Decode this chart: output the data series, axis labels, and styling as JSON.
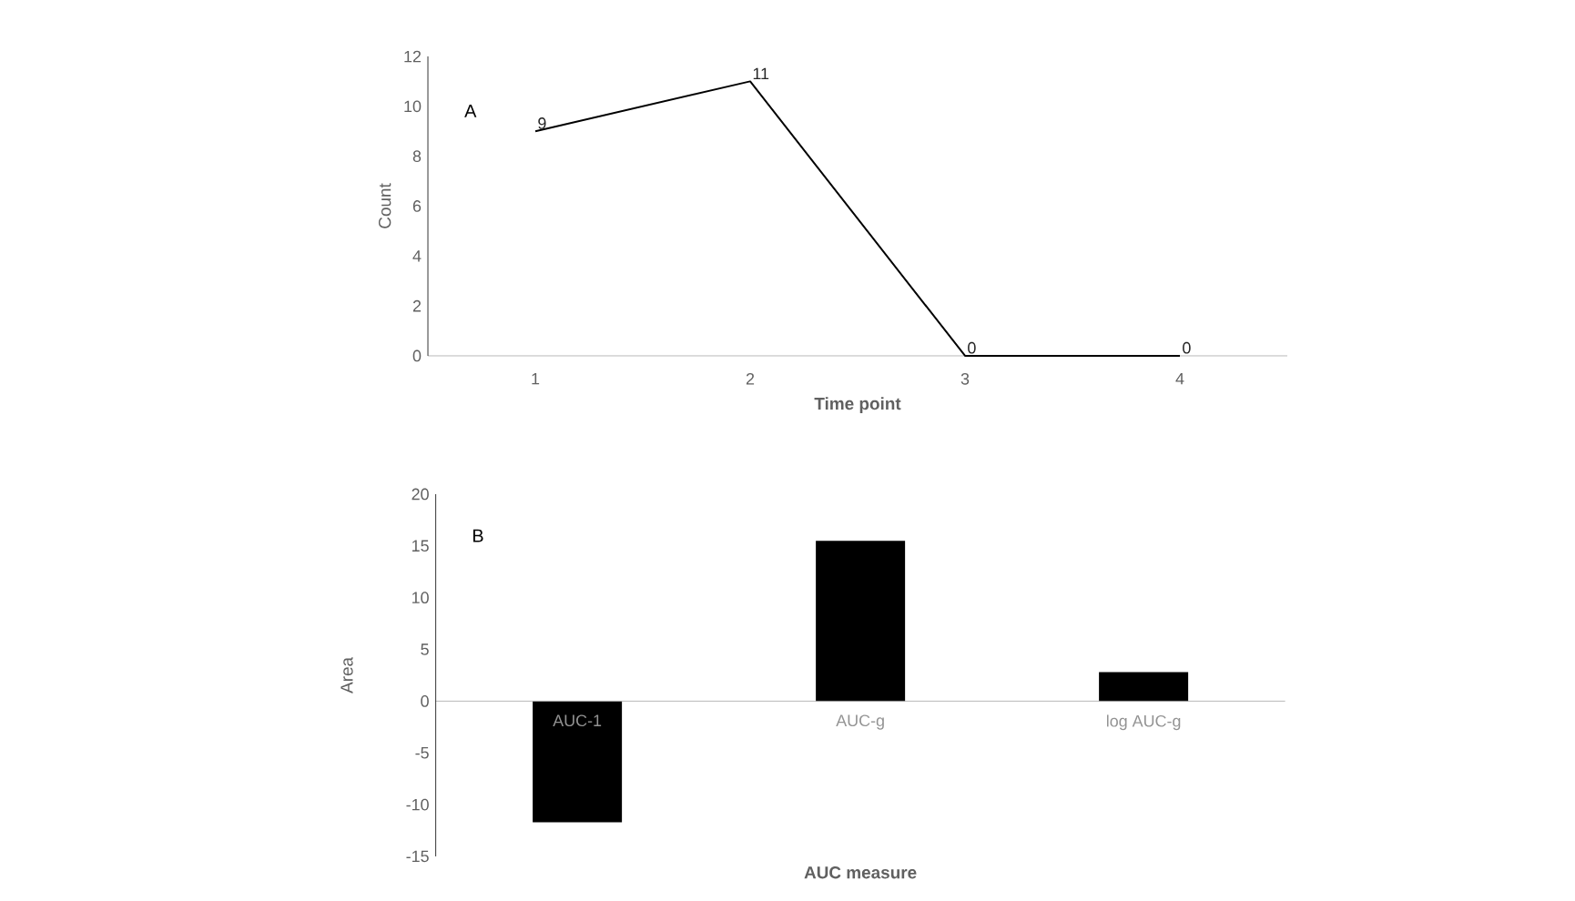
{
  "chart_data": [
    {
      "type": "line",
      "categories": [
        "1",
        "2",
        "3",
        "4"
      ],
      "values": [
        9,
        11,
        0,
        0
      ],
      "color": "#000000",
      "ylim": [
        0,
        12
      ],
      "yticks": [
        0,
        2,
        4,
        6,
        8,
        10,
        12
      ],
      "xlabel": "Time point",
      "ylabel": "Count",
      "annotations": [
        "A"
      ],
      "data_labels": true
    },
    {
      "type": "bar",
      "categories": [
        "AUC-1",
        "AUC-g",
        "log AUC-g"
      ],
      "values": [
        -11.7,
        15.5,
        2.8
      ],
      "color": "#000000",
      "ylim": [
        -15,
        20
      ],
      "yticks": [
        -15,
        -10,
        -5,
        0,
        5,
        10,
        15,
        20
      ],
      "xlabel": "AUC measure",
      "ylabel": "Area",
      "annotations": [
        "B"
      ]
    }
  ]
}
